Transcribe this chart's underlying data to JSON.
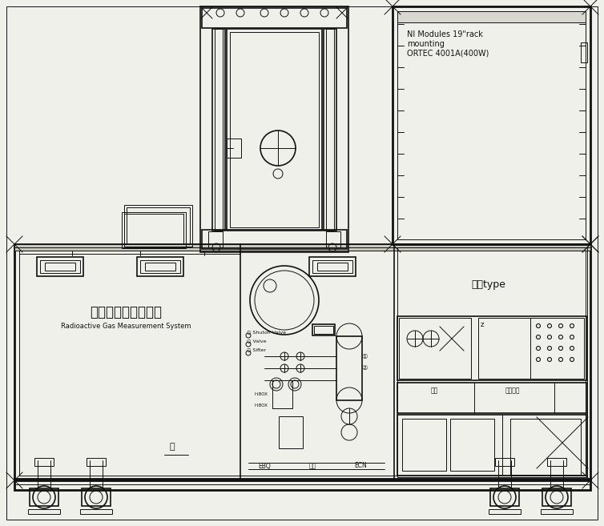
{
  "bg_color": "#f0f0eb",
  "line_color": "#111111",
  "lw_main": 1.2,
  "lw_thin": 0.7,
  "lw_thick": 2.0,
  "korean_title": "방사성기체측정장치",
  "english_subtitle": "Radioactive Gas Measurement System",
  "ni_modules_text": "NI Modules 19\"rack\nmounting\nORTEC 4001A(400W)",
  "shelf_type": "선반type",
  "fig_width": 7.54,
  "fig_height": 6.57
}
